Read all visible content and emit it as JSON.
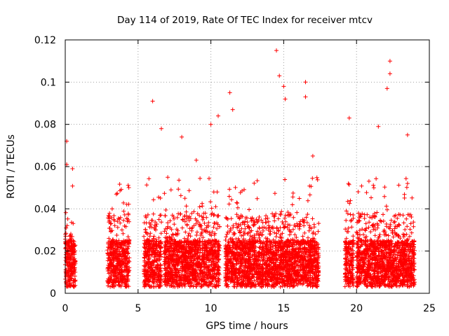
{
  "chart_data": {
    "type": "scatter",
    "title": "Day 114 of 2019, Rate Of TEC Index for receiver mtcv",
    "xlabel": "GPS time / hours",
    "ylabel": "ROTI / TECUs",
    "xlim": [
      0,
      25
    ],
    "ylim": [
      0,
      0.12
    ],
    "xticks": [
      0,
      5,
      10,
      15,
      20,
      25
    ],
    "xtick_labels": [
      "0",
      "5",
      "10",
      "15",
      "20",
      "25"
    ],
    "yticks": [
      0,
      0.02,
      0.04,
      0.06,
      0.08,
      0.1,
      0.12
    ],
    "ytick_labels": [
      "0",
      "0.02",
      "0.04",
      "0.06",
      "0.08",
      "0.1",
      "0.12"
    ],
    "grid": true,
    "marker": "+",
    "color": "#ff0000",
    "data_segments_hours": [
      [
        0,
        0.7
      ],
      [
        2.9,
        4.4
      ],
      [
        5.4,
        6.6
      ],
      [
        6.8,
        10.6
      ],
      [
        11.0,
        14.4
      ],
      [
        14.4,
        17.4
      ],
      [
        19.2,
        19.8
      ],
      [
        20.0,
        24.0
      ]
    ],
    "notable_points": [
      {
        "x": 0.1,
        "y": 0.072
      },
      {
        "x": 0.1,
        "y": 0.061
      },
      {
        "x": 0.5,
        "y": 0.059
      },
      {
        "x": 6.0,
        "y": 0.091
      },
      {
        "x": 6.6,
        "y": 0.078
      },
      {
        "x": 8.0,
        "y": 0.074
      },
      {
        "x": 9.0,
        "y": 0.063
      },
      {
        "x": 10.0,
        "y": 0.08
      },
      {
        "x": 10.5,
        "y": 0.084
      },
      {
        "x": 11.3,
        "y": 0.095
      },
      {
        "x": 11.5,
        "y": 0.087
      },
      {
        "x": 14.5,
        "y": 0.115
      },
      {
        "x": 14.7,
        "y": 0.103
      },
      {
        "x": 15.0,
        "y": 0.098
      },
      {
        "x": 15.1,
        "y": 0.092
      },
      {
        "x": 16.5,
        "y": 0.1
      },
      {
        "x": 16.5,
        "y": 0.093
      },
      {
        "x": 17.0,
        "y": 0.065
      },
      {
        "x": 19.5,
        "y": 0.083
      },
      {
        "x": 21.5,
        "y": 0.079
      },
      {
        "x": 22.3,
        "y": 0.11
      },
      {
        "x": 22.3,
        "y": 0.104
      },
      {
        "x": 22.1,
        "y": 0.097
      },
      {
        "x": 23.5,
        "y": 0.075
      },
      {
        "x": 23.5,
        "y": 0.052
      }
    ]
  }
}
